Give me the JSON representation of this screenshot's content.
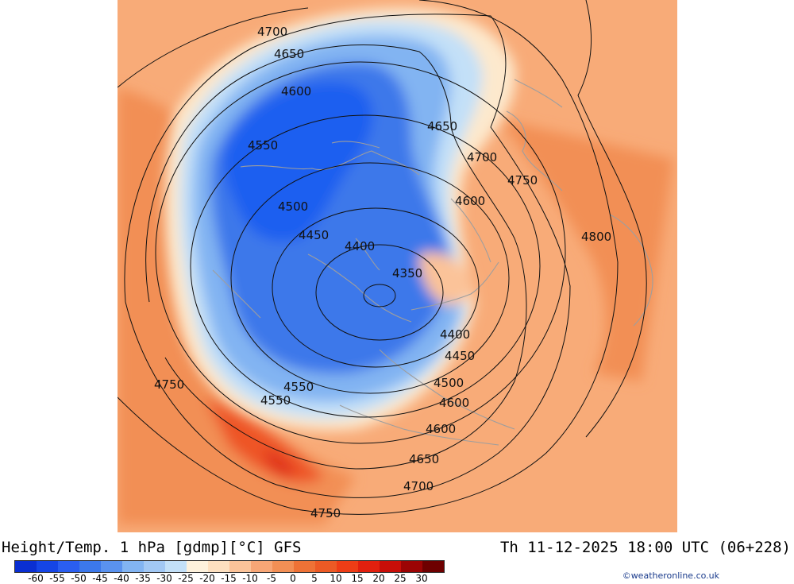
{
  "map": {
    "background_color": "#f8ab78",
    "colors": {
      "deep_blue": "#1c5ef0",
      "mid_blue": "#3c78ea",
      "light_blue": "#82b4f2",
      "pale_blue": "#c3e0f8",
      "cream": "#fde9cd",
      "peach": "#fbc399",
      "orange": "#f28f55",
      "red_orange": "#ee5425",
      "red": "#e0341a",
      "contour": "#111111",
      "coastline": "#9e9e9e"
    },
    "contour_labels": [
      {
        "text": "4700"
      },
      {
        "text": "4650"
      },
      {
        "text": "4600"
      },
      {
        "text": "4650"
      },
      {
        "text": "4550"
      },
      {
        "text": "4700"
      },
      {
        "text": "4750"
      },
      {
        "text": "4600"
      },
      {
        "text": "4500"
      },
      {
        "text": "4800"
      },
      {
        "text": "4450"
      },
      {
        "text": "4400"
      },
      {
        "text": "4350"
      },
      {
        "text": "4400"
      },
      {
        "text": "4450"
      },
      {
        "text": "4750"
      },
      {
        "text": "4500"
      },
      {
        "text": "4550"
      },
      {
        "text": "4600"
      },
      {
        "text": "4550"
      },
      {
        "text": "4600"
      },
      {
        "text": "4650"
      },
      {
        "text": "4700"
      },
      {
        "text": "4750"
      }
    ]
  },
  "footer": {
    "title": "Height/Temp. 1 hPa [gdmp][°C] GFS",
    "timestamp": "Th 11-12-2025 18:00 UTC (06+228)",
    "credit": "©weatheronline.co.uk"
  },
  "colorbar": {
    "colors": [
      "#0a2fd2",
      "#1545e6",
      "#2a5ef0",
      "#3c78ea",
      "#5a92ee",
      "#82b4f2",
      "#a2c8f4",
      "#c3e0f8",
      "#fdf1dc",
      "#fde0c0",
      "#fbc399",
      "#f7a676",
      "#f28f55",
      "#ee7236",
      "#ec5a25",
      "#ee3d16",
      "#e2200e",
      "#c80e08",
      "#9c0404",
      "#6e0000"
    ],
    "ticks": [
      "-60",
      "-55",
      "-50",
      "-45",
      "-40",
      "-35",
      "-30",
      "-25",
      "-20",
      "-15",
      "-10",
      "-5",
      "0",
      "5",
      "10",
      "15",
      "20",
      "25",
      "30"
    ]
  }
}
